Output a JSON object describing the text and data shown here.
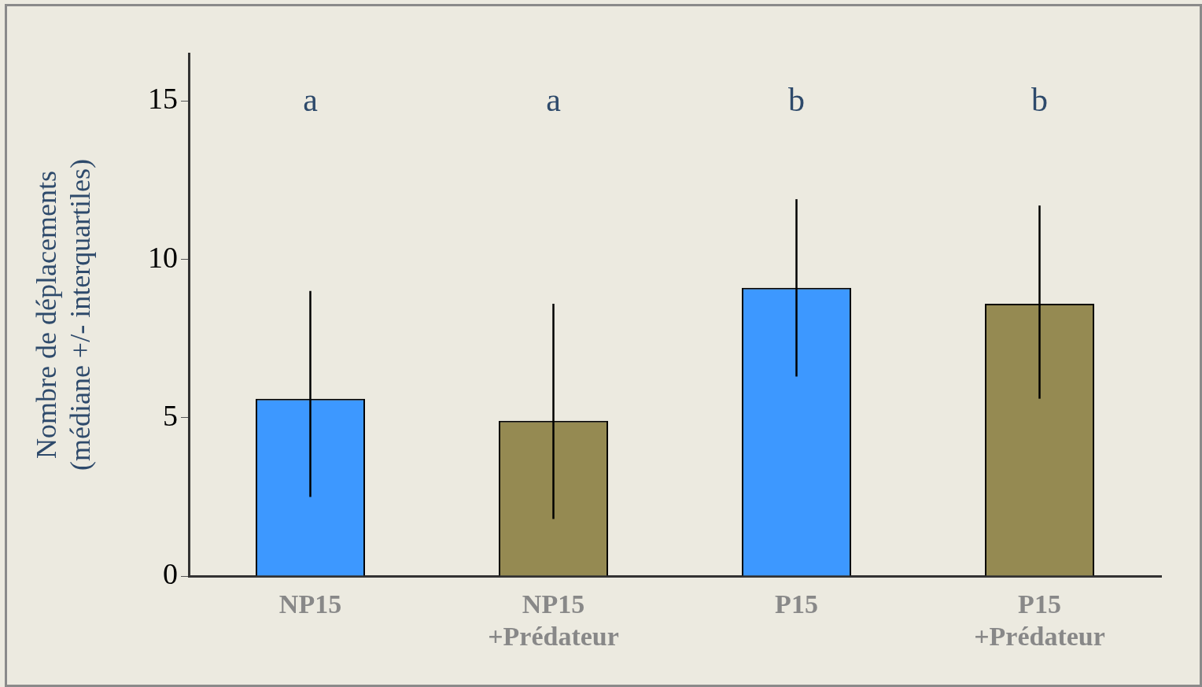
{
  "chart_data": {
    "type": "bar",
    "ylabel": "Nombre de déplacements\n(médiane +/- interquartiles)",
    "categories": [
      "NP15",
      "NP15\n+Prédateur",
      "P15",
      "P15\n+Prédateur"
    ],
    "values": [
      5.6,
      4.9,
      9.1,
      8.6
    ],
    "colors": [
      "#3d98ff",
      "#958a52",
      "#3d98ff",
      "#958a52"
    ],
    "errors": [
      [
        2.5,
        9.0
      ],
      [
        1.8,
        8.6
      ],
      [
        6.3,
        11.9
      ],
      [
        5.6,
        11.7
      ]
    ],
    "ylim": [
      0,
      16.5
    ],
    "yticks": [
      0,
      5,
      10,
      15
    ],
    "grid": false,
    "legend": false,
    "annotations": [
      "a",
      "a",
      "b",
      "b"
    ]
  }
}
